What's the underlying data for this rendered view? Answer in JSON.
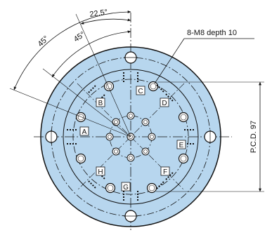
{
  "annotations": {
    "angle_outer": "45°",
    "angle_inner": "45°",
    "angle_half": "22.5°",
    "thread_callout": "8-M8 depth 10",
    "pcd_label": "P.C.D. 97"
  },
  "hole_labels": [
    "A",
    "B",
    "C",
    "D",
    "E",
    "F",
    "G",
    "H"
  ],
  "colors": {
    "plate_fill": "#b7d6ee",
    "line": "#111111",
    "background": "#ffffff"
  }
}
